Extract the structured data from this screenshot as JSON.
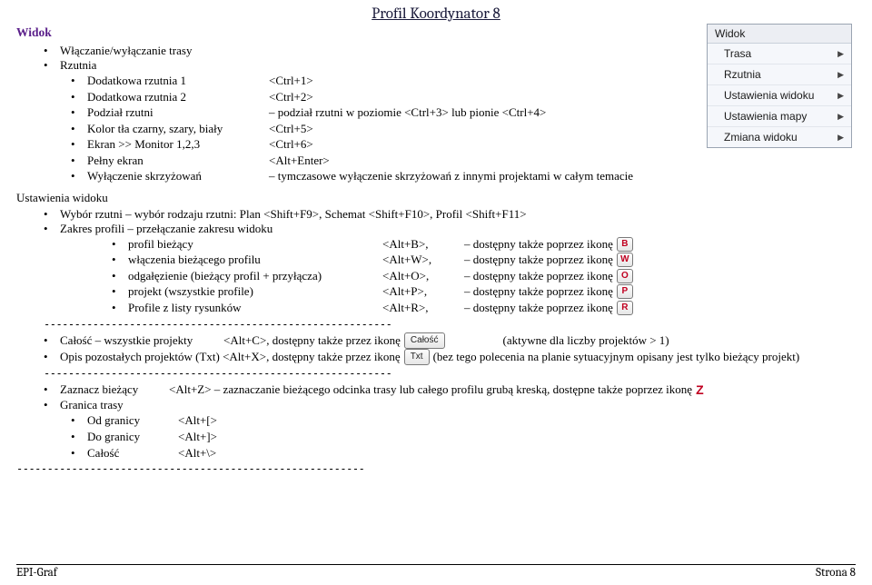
{
  "page_title": "Profil Koordynator 8",
  "section_heading": "Widok",
  "top_items": {
    "trasa": "Włączanie/wyłączanie trasy",
    "rzutnia": "Rzutnia"
  },
  "rzutnia_items": [
    {
      "label": "Dodatkowa rzutnia 1",
      "shortcut": "<Ctrl+1>"
    },
    {
      "label": "Dodatkowa rzutnia 2",
      "shortcut": "<Ctrl+2>"
    },
    {
      "label": "Podział rzutni",
      "shortcut": "– podział rzutni w poziomie <Ctrl+3> lub pionie <Ctrl+4>"
    },
    {
      "label": "Kolor tła czarny, szary, biały",
      "shortcut": "<Ctrl+5>"
    },
    {
      "label": "Ekran >> Monitor 1,2,3",
      "shortcut": "<Ctrl+6>"
    },
    {
      "label": "Pełny ekran",
      "shortcut": "<Alt+Enter>"
    },
    {
      "label": "Wyłączenie skrzyżowań",
      "shortcut": "– tymczasowe wyłączenie skrzyżowań z innymi projektami w całym temacie"
    }
  ],
  "ustawienia_heading": "Ustawienia widoku",
  "ustawienia_top": [
    "Wybór rzutni  – wybór rodzaju rzutni: Plan <Shift+F9>, Schemat <Shift+F10>, Profil <Shift+F11>",
    "Zakres profili – przełączanie zakresu widoku"
  ],
  "zakres_items": [
    {
      "label": "profil bieżący",
      "shortcut": "<Alt+B>,",
      "after": "– dostępny także poprzez ikonę",
      "icon": "B"
    },
    {
      "label": "włączenia bieżącego profilu",
      "shortcut": "<Alt+W>,",
      "after": "– dostępny także poprzez ikonę",
      "icon": "W"
    },
    {
      "label": "odgałęzienie (bieżący profil + przyłącza)",
      "shortcut": "<Alt+O>,",
      "after": "– dostępny także poprzez ikonę",
      "icon": "O"
    },
    {
      "label": "projekt (wszystkie profile)",
      "shortcut": "<Alt+P>,",
      "after": "– dostępny także poprzez ikonę",
      "icon": "P"
    },
    {
      "label": "Profile z listy rysunków",
      "shortcut": "<Alt+R>,",
      "after": "– dostępny także poprzez ikonę",
      "icon": "R"
    }
  ],
  "block2": {
    "calosc_pre": "Całość – wszystkie projekty",
    "calosc_mid": "<Alt+C>, dostępny także przez ikonę",
    "calosc_btn": "Całość",
    "calosc_post": "(aktywne dla liczby projektów > 1)",
    "opis_pre": "Opis pozostałych projektów (Txt) <Alt+X>, dostępny także przez ikonę",
    "opis_btn": "Txt",
    "opis_post": "(bez tego polecenia na planie sytuacyjnym opisany jest tylko bieżący projekt)"
  },
  "block3": {
    "zaznacz_label": "Zaznacz bieżący",
    "zaznacz_text": "<Alt+Z> – zaznaczanie bieżącego odcinka trasy lub całego profilu grubą kreską, dostępne także poprzez ikonę",
    "z_icon": "Z",
    "granica": "Granica trasy",
    "granica_items": [
      {
        "label": "Od granicy",
        "shortcut": "<Alt+[>"
      },
      {
        "label": "Do granicy",
        "shortcut": "<Alt+]>"
      },
      {
        "label": "Całość",
        "shortcut": "<Alt+\\>"
      }
    ]
  },
  "separator": "---------------------------------------------------------",
  "menu": {
    "title": "Widok",
    "items": [
      "Trasa",
      "Rzutnia",
      "Ustawienia widoku",
      "Ustawienia mapy",
      "Zmiana widoku"
    ]
  },
  "footer": {
    "left": "EPI-Graf",
    "right": "Strona 8"
  }
}
